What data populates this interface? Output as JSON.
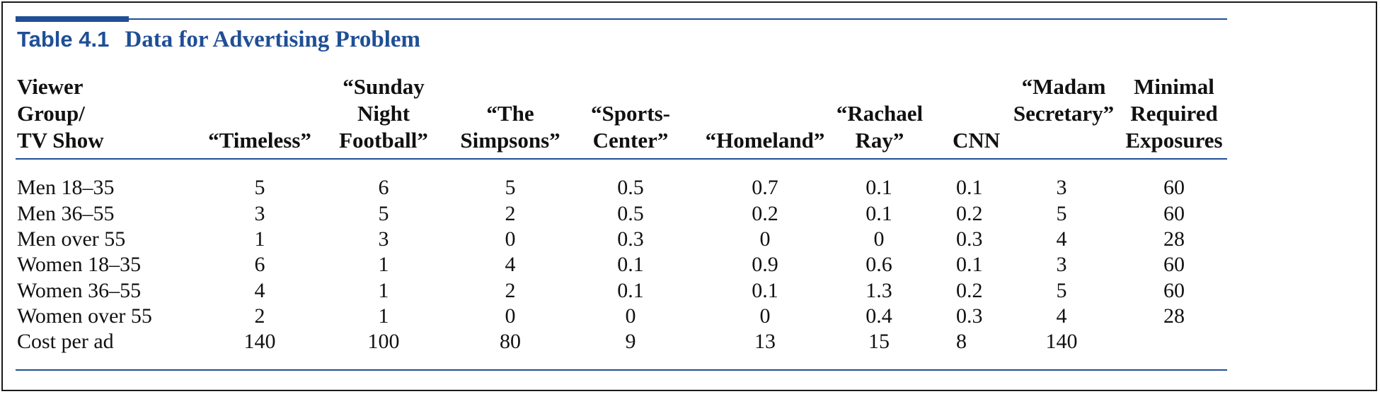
{
  "table": {
    "number": "Table 4.1",
    "title": "Data for Advertising Problem",
    "columns": [
      {
        "lines": [
          "Viewer",
          "Group/",
          "TV Show"
        ]
      },
      {
        "lines": [
          "“Timeless”"
        ]
      },
      {
        "lines": [
          "“Sunday",
          "Night",
          "Football”"
        ]
      },
      {
        "lines": [
          "“The",
          "Simpsons”"
        ]
      },
      {
        "lines": [
          "“Sports-",
          "Center”"
        ]
      },
      {
        "lines": [
          "“Homeland”"
        ]
      },
      {
        "lines": [
          "“Rachael",
          "Ray”"
        ]
      },
      {
        "lines": [
          "CNN"
        ]
      },
      {
        "lines": [
          "“Madam",
          "Secretary”"
        ]
      },
      {
        "lines": [
          "Minimal",
          "Required",
          "Exposures"
        ]
      }
    ],
    "rows": [
      {
        "label": "Men 18–35",
        "values": [
          "5",
          "6",
          "5",
          "0.5",
          "0.7",
          "0.1",
          "0.1",
          "3",
          "60"
        ]
      },
      {
        "label": "Men 36–55",
        "values": [
          "3",
          "5",
          "2",
          "0.5",
          "0.2",
          "0.1",
          "0.2",
          "5",
          "60"
        ]
      },
      {
        "label": "Men over 55",
        "values": [
          "1",
          "3",
          "0",
          "0.3",
          "0",
          "0",
          "0.3",
          "4",
          "28"
        ]
      },
      {
        "label": "Women 18–35",
        "values": [
          "6",
          "1",
          "4",
          "0.1",
          "0.9",
          "0.6",
          "0.1",
          "3",
          "60"
        ]
      },
      {
        "label": "Women 36–55",
        "values": [
          "4",
          "1",
          "2",
          "0.1",
          "0.1",
          "1.3",
          "0.2",
          "5",
          "60"
        ]
      },
      {
        "label": "Women over 55",
        "values": [
          "2",
          "1",
          "0",
          "0",
          "0",
          "0.4",
          "0.3",
          "4",
          "28"
        ]
      },
      {
        "label": "Cost per ad",
        "values": [
          "140",
          "100",
          "80",
          "9",
          "13",
          "15",
          "8",
          "140",
          ""
        ]
      }
    ]
  },
  "colors": {
    "accent": "#1f4f96",
    "text": "#111111",
    "border": "#1a1a1a"
  }
}
